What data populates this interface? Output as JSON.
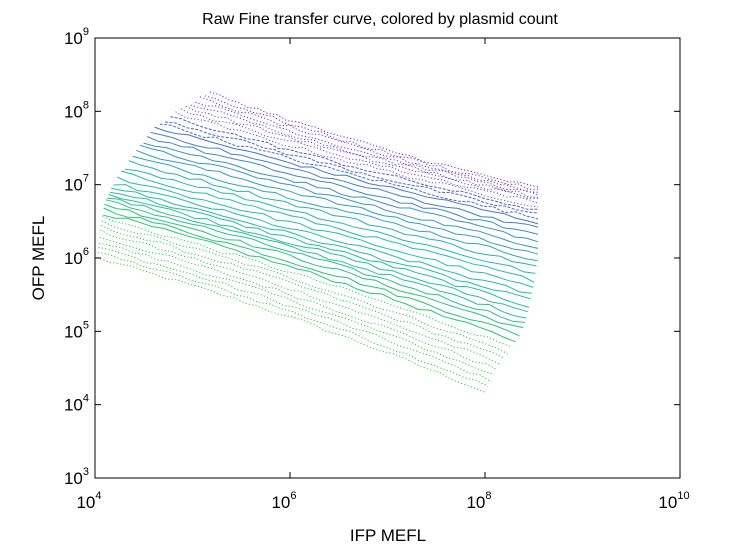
{
  "chart_data": {
    "type": "line",
    "title": "Raw Fine transfer curve, colored by plasmid count",
    "xlabel": "IFP MEFL",
    "ylabel": "OFP MEFL",
    "xscale": "log",
    "yscale": "log",
    "xlim": [
      10000,
      10000000000
    ],
    "ylim": [
      1000,
      1000000000
    ],
    "grid": false,
    "legend": "none",
    "x_ticks": [
      {
        "base": "10",
        "exp": "4",
        "value": 10000
      },
      {
        "base": "10",
        "exp": "6",
        "value": 1000000
      },
      {
        "base": "10",
        "exp": "8",
        "value": 100000000
      },
      {
        "base": "10",
        "exp": "10",
        "value": 10000000000
      }
    ],
    "y_ticks": [
      {
        "base": "10",
        "exp": "3",
        "value": 1000
      },
      {
        "base": "10",
        "exp": "4",
        "value": 10000
      },
      {
        "base": "10",
        "exp": "5",
        "value": 100000
      },
      {
        "base": "10",
        "exp": "6",
        "value": 1000000
      },
      {
        "base": "10",
        "exp": "7",
        "value": 10000000
      },
      {
        "base": "10",
        "exp": "8",
        "value": 100000000
      },
      {
        "base": "10",
        "exp": "9",
        "value": 1000000000
      }
    ],
    "color_low": "#33cc33",
    "color_mid": "#22bbbb",
    "color_high": "#7a1fcf",
    "series_count": 40,
    "series": [
      {
        "x": [
          10500,
          100000000
        ],
        "y": [
          1000000,
          15000
        ]
      },
      {
        "x": [
          11500,
          150000000
        ],
        "y": [
          2500000,
          40000
        ]
      },
      {
        "x": [
          12500,
          250000000
        ],
        "y": [
          5500000,
          110000
        ]
      },
      {
        "x": [
          15000,
          300000000
        ],
        "y": [
          10000000,
          300000
        ]
      },
      {
        "x": [
          25000,
          350000000
        ],
        "y": [
          25000000,
          1000000
        ]
      },
      {
        "x": [
          40000,
          350000000
        ],
        "y": [
          60000000,
          3000000
        ]
      },
      {
        "x": [
          80000,
          350000000
        ],
        "y": [
          110000000,
          6000000
        ]
      },
      {
        "x": [
          150000,
          350000000
        ],
        "y": [
          180000000,
          9000000
        ]
      }
    ]
  }
}
